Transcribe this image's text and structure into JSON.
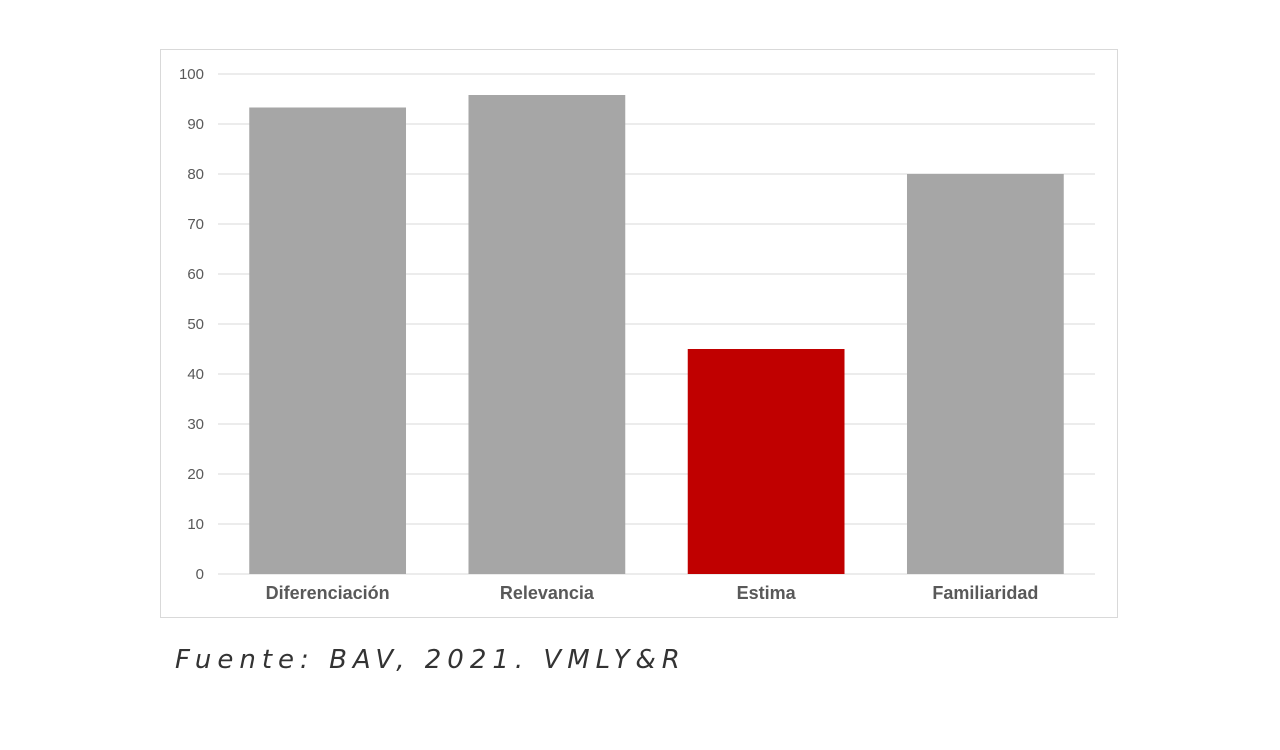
{
  "chart_data": {
    "type": "bar",
    "categories": [
      "Diferenciación",
      "Relevancia",
      "Estima",
      "Familiaridad"
    ],
    "values": [
      93.3,
      95.8,
      45,
      80
    ],
    "highlight_index": 2,
    "ylim": [
      0,
      100
    ],
    "yticks": [
      0,
      10,
      20,
      30,
      40,
      50,
      60,
      70,
      80,
      90,
      100
    ],
    "grid": true,
    "colors": {
      "bar": "#a6a6a6",
      "highlight": "#c00000",
      "grid": "#d9d9d9",
      "axis": "#d9d9d9"
    }
  },
  "source": "Fuente: BAV, 2021. VMLY&R"
}
